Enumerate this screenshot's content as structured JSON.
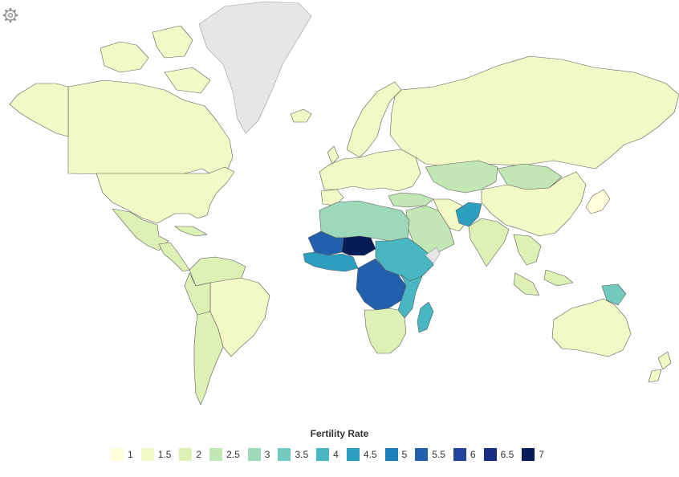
{
  "legend": {
    "title": "Fertility Rate",
    "items": [
      {
        "label": "1",
        "color": "#ffffd9"
      },
      {
        "label": "1.5",
        "color": "#f3f9c6"
      },
      {
        "label": "2",
        "color": "#def1b4"
      },
      {
        "label": "2.5",
        "color": "#c2e6b4"
      },
      {
        "label": "3",
        "color": "#9dd9b8"
      },
      {
        "label": "3.5",
        "color": "#72c9bd"
      },
      {
        "label": "4",
        "color": "#48b7c2"
      },
      {
        "label": "4.5",
        "color": "#2c9ec0"
      },
      {
        "label": "5",
        "color": "#1e80b8"
      },
      {
        "label": "5.5",
        "color": "#225fac"
      },
      {
        "label": "6",
        "color": "#23449d"
      },
      {
        "label": "6.5",
        "color": "#1a2d80"
      },
      {
        "label": "7",
        "color": "#081d58"
      }
    ]
  },
  "controls": {
    "settings_icon": "gear-icon"
  },
  "map": {
    "projection": "mercator",
    "no_data_color": "#e6e6e6",
    "border_color": "#5a5a5a",
    "regions": {
      "north-america": 1.7,
      "alaska": 1.7,
      "greenland": null,
      "usa": 1.8,
      "mexico": 2.2,
      "central-america": 2.3,
      "south-america-north": 2.0,
      "brazil": 1.7,
      "andes": 2.2,
      "southern-cone": 2.0,
      "europe": 1.5,
      "iceland": 1.7,
      "scandinavia": 1.7,
      "russia": 1.6,
      "kazakhstan": 2.9,
      "mongolia": 2.9,
      "china": 1.6,
      "india": 2.2,
      "middle-east": 2.6,
      "afghanistan": 4.5,
      "iran": 1.9,
      "southeast-asia": 2.0,
      "north-africa": 3.0,
      "sahel": 5.8,
      "niger": 7.0,
      "west-africa": 4.8,
      "central-africa": 5.6,
      "east-africa": 4.4,
      "southern-africa": 2.4,
      "madagascar": 4.0,
      "somaliland": null,
      "papua-new-guinea": 3.6,
      "australia": 1.7,
      "new-zealand": 1.8,
      "japan": 1.4
    }
  }
}
